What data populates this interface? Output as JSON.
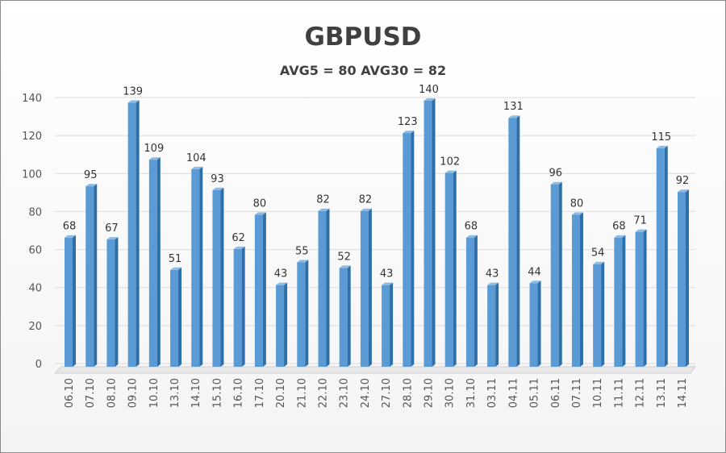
{
  "chart_data": {
    "type": "bar",
    "title": "GBPUSD",
    "subtitle": "AVG5 = 80 AVG30 = 82",
    "xlabel": "",
    "ylabel": "",
    "ylim": [
      0,
      140
    ],
    "yticks": [
      0,
      20,
      40,
      60,
      80,
      100,
      120,
      140
    ],
    "grid": true,
    "legend": "none",
    "bar_color": "#5b9bd5",
    "categories": [
      "06.10",
      "07.10",
      "08.10",
      "09.10",
      "10.10",
      "13.10",
      "14.10",
      "15.10",
      "16.10",
      "17.10",
      "20.10",
      "21.10",
      "22.10",
      "23.10",
      "24.10",
      "27.10",
      "28.10",
      "29.10",
      "30.10",
      "31.10",
      "03.11",
      "04.11",
      "05.11",
      "06.11",
      "07.11",
      "10.11",
      "11.11",
      "12.11",
      "13.11",
      "14.11"
    ],
    "values": [
      68,
      95,
      67,
      139,
      109,
      51,
      104,
      93,
      62,
      80,
      43,
      55,
      82,
      52,
      82,
      43,
      123,
      140,
      102,
      68,
      43,
      131,
      44,
      96,
      80,
      54,
      68,
      71,
      115,
      92
    ]
  }
}
